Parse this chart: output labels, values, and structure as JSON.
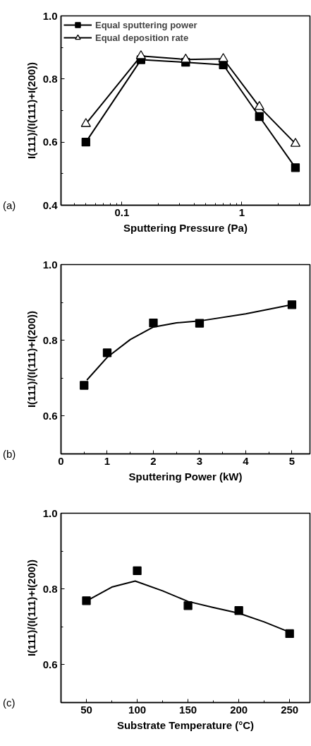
{
  "chart_data": [
    {
      "type": "line",
      "xlabel": "Sputtering Pressure (Pa)",
      "ylabel": "I(111)/(I(111)+I(200))",
      "log": "x",
      "xlim": [
        0.031,
        3.7
      ],
      "ylim": [
        0.4,
        1.0
      ],
      "legend": "top left",
      "marker": "square",
      "annotations": [
        "(a)"
      ],
      "xticks": [
        {
          "value": 0.04,
          "label": null
        },
        {
          "value": 0.05,
          "label": null
        },
        {
          "value": 0.06,
          "label": null
        },
        {
          "value": 0.07,
          "label": null
        },
        {
          "value": 0.08,
          "label": null
        },
        {
          "value": 0.09,
          "label": null
        },
        0.1,
        {
          "value": 0.2,
          "label": null
        },
        {
          "value": 0.3,
          "label": null
        },
        {
          "value": 0.4,
          "label": null
        },
        {
          "value": 0.5,
          "label": null
        },
        {
          "value": 0.6,
          "label": null
        },
        {
          "value": 0.7,
          "label": null
        },
        {
          "value": 0.8,
          "label": null
        },
        {
          "value": 0.9,
          "label": null
        },
        1,
        {
          "value": 2,
          "label": null
        },
        {
          "value": 3,
          "label": null
        }
      ],
      "yticks": [
        0.4,
        {
          "value": 0.5,
          "label": null
        },
        0.6,
        {
          "value": 0.7,
          "label": null
        },
        0.8,
        {
          "value": 0.9,
          "label": null
        },
        {
          "value": 1.0,
          "label": "1.0"
        }
      ],
      "x": [
        0.05,
        0.144,
        0.34,
        0.7,
        1.4,
        2.8
      ],
      "series": [
        {
          "name": "Equal sputtering power",
          "color": "#000000",
          "marker": "square",
          "values": [
            0.6,
            0.861,
            0.853,
            0.845,
            0.681,
            0.519
          ]
        },
        {
          "name": "Equal deposition rate",
          "color": "#000000",
          "marker": "triangle",
          "values": [
            0.658,
            0.873,
            0.862,
            0.864,
            0.712,
            0.595
          ]
        }
      ]
    },
    {
      "type": "scatter",
      "xlabel": "Sputtering Power (kW)",
      "ylabel": "I(111)/(I(111)+I(200))",
      "xlim": [
        0,
        5.39
      ],
      "ylim": [
        0.5,
        1.0
      ],
      "marker": "square",
      "annotations": [
        "(b)"
      ],
      "xticks": [
        0,
        {
          "value": 0.5,
          "label": null
        },
        1,
        {
          "value": 1.5,
          "label": null
        },
        2,
        {
          "value": 2.5,
          "label": null
        },
        3,
        {
          "value": 3.5,
          "label": null
        },
        4,
        {
          "value": 4.5,
          "label": null
        },
        5
      ],
      "yticks": [
        0.6,
        {
          "value": 0.7,
          "label": null
        },
        0.8,
        {
          "value": 0.9,
          "label": null
        },
        {
          "value": 1.0,
          "label": "1.0"
        }
      ],
      "x": [
        0.5,
        1,
        2,
        3,
        5
      ],
      "series": [
        {
          "color": "#000000",
          "type": "scatter",
          "values": [
            0.681,
            0.767,
            0.846,
            0.845,
            0.894
          ]
        },
        {
          "color": "#000000",
          "type": "line",
          "marker": "none",
          "x": [
            0.56,
            1,
            1.5,
            2,
            2.5,
            3,
            4,
            5
          ],
          "values": [
            0.695,
            0.755,
            0.802,
            0.835,
            0.846,
            0.851,
            0.87,
            0.894
          ]
        }
      ]
    },
    {
      "type": "scatter",
      "xlabel": "Substrate Temperature (°C)",
      "ylabel": "I(111)/(I(111)+I(200))",
      "xlim": [
        25,
        270
      ],
      "ylim": [
        0.5,
        1.0
      ],
      "marker": "square",
      "annotations": [
        "(c)"
      ],
      "xticks": [
        50,
        {
          "value": 75,
          "label": null
        },
        100,
        {
          "value": 125,
          "label": null
        },
        150,
        {
          "value": 175,
          "label": null
        },
        200,
        {
          "value": 225,
          "label": null
        },
        250
      ],
      "yticks": [
        0.6,
        {
          "value": 0.7,
          "label": null
        },
        0.8,
        {
          "value": 0.9,
          "label": null
        },
        {
          "value": 1.0,
          "label": "1.0"
        }
      ],
      "x": [
        50,
        100,
        150,
        200,
        250
      ],
      "series": [
        {
          "color": "#000000",
          "type": "scatter",
          "values": [
            0.769,
            0.848,
            0.756,
            0.743,
            0.682
          ]
        },
        {
          "color": "#000000",
          "type": "line",
          "marker": "none",
          "x": [
            53.4,
            75,
            98,
            125,
            150,
            175,
            200,
            225,
            250
          ],
          "values": [
            0.773,
            0.805,
            0.821,
            0.795,
            0.767,
            0.751,
            0.736,
            0.713,
            0.686
          ]
        }
      ]
    }
  ]
}
